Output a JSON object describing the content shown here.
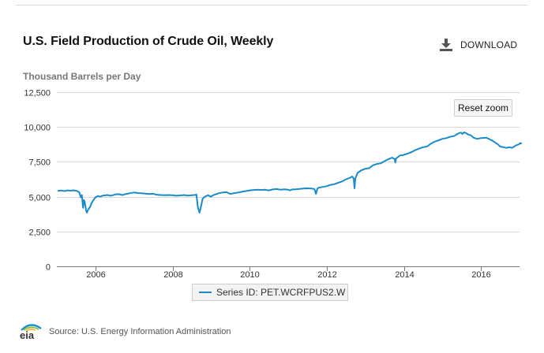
{
  "header": {
    "title": "U.S. Field Production of Crude Oil, Weekly",
    "download_label": "DOWNLOAD",
    "download_icon": "download-icon"
  },
  "units_label": "Thousand Barrels per Day",
  "reset_zoom_label": "Reset zoom",
  "legend": {
    "label": "Series ID: PET.WCRFPUS2.W"
  },
  "footer": {
    "logo_text": "eia",
    "source": "Source: U.S. Energy Information Administration"
  },
  "colors": {
    "series": "#1a8bc8",
    "grid": "#d9d9d9",
    "axis_text": "#333333"
  },
  "chart_data": {
    "type": "line",
    "ylabel": "Thousand Barrels per Day",
    "xlabel": "",
    "xlim": [
      2005.0,
      2017.0
    ],
    "ylim": [
      0,
      12500
    ],
    "y_ticks": [
      0,
      2500,
      5000,
      7500,
      10000,
      12500
    ],
    "y_tick_labels": [
      "0",
      "2,500",
      "5,000",
      "7,500",
      "10,000",
      "12,500"
    ],
    "x_ticks": [
      2006,
      2008,
      2010,
      2012,
      2014,
      2016
    ],
    "x_tick_labels": [
      "2006",
      "2008",
      "2010",
      "2012",
      "2014",
      "2016"
    ],
    "grid": "horizontal",
    "legend_position": "bottom-center",
    "series": [
      {
        "name": "Series ID: PET.WCRFPUS2.W",
        "color": "#1a8bc8",
        "points": [
          [
            2005.02,
            5420
          ],
          [
            2005.12,
            5440
          ],
          [
            2005.2,
            5400
          ],
          [
            2005.28,
            5450
          ],
          [
            2005.36,
            5430
          ],
          [
            2005.44,
            5460
          ],
          [
            2005.52,
            5410
          ],
          [
            2005.58,
            5320
          ],
          [
            2005.62,
            4950
          ],
          [
            2005.65,
            5120
          ],
          [
            2005.68,
            4200
          ],
          [
            2005.7,
            4750
          ],
          [
            2005.72,
            4650
          ],
          [
            2005.76,
            4000
          ],
          [
            2005.78,
            3850
          ],
          [
            2005.82,
            4100
          ],
          [
            2005.86,
            4250
          ],
          [
            2005.9,
            4550
          ],
          [
            2005.95,
            4750
          ],
          [
            2006.0,
            4950
          ],
          [
            2006.06,
            5050
          ],
          [
            2006.12,
            5000
          ],
          [
            2006.2,
            5080
          ],
          [
            2006.3,
            5120
          ],
          [
            2006.4,
            5070
          ],
          [
            2006.5,
            5150
          ],
          [
            2006.6,
            5180
          ],
          [
            2006.7,
            5120
          ],
          [
            2006.8,
            5200
          ],
          [
            2006.9,
            5250
          ],
          [
            2007.0,
            5300
          ],
          [
            2007.1,
            5260
          ],
          [
            2007.2,
            5250
          ],
          [
            2007.3,
            5220
          ],
          [
            2007.4,
            5190
          ],
          [
            2007.5,
            5210
          ],
          [
            2007.6,
            5130
          ],
          [
            2007.7,
            5120
          ],
          [
            2007.8,
            5100
          ],
          [
            2007.9,
            5120
          ],
          [
            2008.0,
            5100
          ],
          [
            2008.1,
            5070
          ],
          [
            2008.2,
            5090
          ],
          [
            2008.3,
            5120
          ],
          [
            2008.4,
            5080
          ],
          [
            2008.5,
            5100
          ],
          [
            2008.58,
            5120
          ],
          [
            2008.62,
            5150
          ],
          [
            2008.66,
            4200
          ],
          [
            2008.7,
            3850
          ],
          [
            2008.74,
            4300
          ],
          [
            2008.78,
            4850
          ],
          [
            2008.84,
            5000
          ],
          [
            2008.92,
            5100
          ],
          [
            2009.0,
            5000
          ],
          [
            2009.05,
            5100
          ],
          [
            2009.1,
            5150
          ],
          [
            2009.2,
            5250
          ],
          [
            2009.3,
            5300
          ],
          [
            2009.4,
            5320
          ],
          [
            2009.5,
            5200
          ],
          [
            2009.6,
            5250
          ],
          [
            2009.7,
            5300
          ],
          [
            2009.8,
            5350
          ],
          [
            2009.9,
            5400
          ],
          [
            2010.0,
            5450
          ],
          [
            2010.1,
            5480
          ],
          [
            2010.2,
            5500
          ],
          [
            2010.3,
            5480
          ],
          [
            2010.4,
            5500
          ],
          [
            2010.5,
            5450
          ],
          [
            2010.6,
            5520
          ],
          [
            2010.7,
            5550
          ],
          [
            2010.8,
            5500
          ],
          [
            2010.9,
            5530
          ],
          [
            2011.0,
            5500
          ],
          [
            2011.05,
            5450
          ],
          [
            2011.1,
            5520
          ],
          [
            2011.2,
            5530
          ],
          [
            2011.3,
            5560
          ],
          [
            2011.4,
            5580
          ],
          [
            2011.5,
            5600
          ],
          [
            2011.6,
            5580
          ],
          [
            2011.68,
            5550
          ],
          [
            2011.72,
            5200
          ],
          [
            2011.76,
            5600
          ],
          [
            2011.8,
            5650
          ],
          [
            2011.9,
            5700
          ],
          [
            2012.0,
            5750
          ],
          [
            2012.1,
            5850
          ],
          [
            2012.2,
            5900
          ],
          [
            2012.3,
            6000
          ],
          [
            2012.4,
            6100
          ],
          [
            2012.5,
            6250
          ],
          [
            2012.6,
            6350
          ],
          [
            2012.66,
            6450
          ],
          [
            2012.7,
            6300
          ],
          [
            2012.72,
            5600
          ],
          [
            2012.74,
            6300
          ],
          [
            2012.8,
            6700
          ],
          [
            2012.9,
            6900
          ],
          [
            2013.0,
            7000
          ],
          [
            2013.1,
            7050
          ],
          [
            2013.2,
            7250
          ],
          [
            2013.3,
            7350
          ],
          [
            2013.4,
            7400
          ],
          [
            2013.5,
            7550
          ],
          [
            2013.6,
            7700
          ],
          [
            2013.7,
            7800
          ],
          [
            2013.76,
            7700
          ],
          [
            2013.78,
            7450
          ],
          [
            2013.8,
            7750
          ],
          [
            2013.9,
            7950
          ],
          [
            2014.0,
            8000
          ],
          [
            2014.1,
            8100
          ],
          [
            2014.2,
            8200
          ],
          [
            2014.3,
            8350
          ],
          [
            2014.4,
            8450
          ],
          [
            2014.5,
            8550
          ],
          [
            2014.6,
            8600
          ],
          [
            2014.7,
            8800
          ],
          [
            2014.8,
            8950
          ],
          [
            2014.9,
            9050
          ],
          [
            2015.0,
            9150
          ],
          [
            2015.1,
            9200
          ],
          [
            2015.2,
            9300
          ],
          [
            2015.3,
            9350
          ],
          [
            2015.36,
            9450
          ],
          [
            2015.42,
            9550
          ],
          [
            2015.48,
            9600
          ],
          [
            2015.52,
            9500
          ],
          [
            2015.56,
            9620
          ],
          [
            2015.62,
            9550
          ],
          [
            2015.68,
            9450
          ],
          [
            2015.74,
            9400
          ],
          [
            2015.8,
            9250
          ],
          [
            2015.86,
            9180
          ],
          [
            2015.9,
            9150
          ],
          [
            2016.0,
            9200
          ],
          [
            2016.08,
            9220
          ],
          [
            2016.14,
            9230
          ],
          [
            2016.2,
            9150
          ],
          [
            2016.28,
            9050
          ],
          [
            2016.36,
            8900
          ],
          [
            2016.44,
            8750
          ],
          [
            2016.5,
            8600
          ],
          [
            2016.58,
            8550
          ],
          [
            2016.66,
            8500
          ],
          [
            2016.74,
            8550
          ],
          [
            2016.8,
            8500
          ],
          [
            2016.86,
            8600
          ],
          [
            2016.92,
            8700
          ],
          [
            2016.98,
            8750
          ],
          [
            2017.02,
            8850
          ],
          [
            2017.06,
            8800
          ]
        ]
      }
    ]
  }
}
